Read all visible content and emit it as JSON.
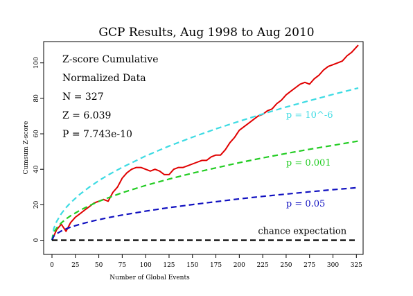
{
  "chart_data": {
    "type": "line",
    "title": "GCP Results, Aug 1998 to Aug 2010",
    "xlabel": "Number of Global Events",
    "ylabel": "Cumsum Z-score",
    "xlim": [
      0,
      327
    ],
    "ylim": [
      -8,
      112
    ],
    "x_ticks": [
      0,
      25,
      50,
      75,
      100,
      125,
      150,
      175,
      200,
      225,
      250,
      275,
      300,
      325
    ],
    "y_ticks": [
      0,
      20,
      40,
      60,
      80,
      100
    ],
    "grid": false,
    "stats": [
      "Z-score Cumulative",
      "Normalized Data",
      "N = 327",
      "Z = 6.039",
      "P = 7.743e-10"
    ],
    "series": [
      {
        "name": "",
        "color": "#e00000",
        "style": "solid",
        "x": [
          0,
          5,
          10,
          15,
          20,
          25,
          30,
          35,
          40,
          45,
          50,
          55,
          60,
          65,
          70,
          75,
          80,
          85,
          90,
          95,
          100,
          105,
          110,
          115,
          120,
          125,
          130,
          135,
          140,
          145,
          150,
          155,
          160,
          165,
          170,
          175,
          180,
          185,
          190,
          195,
          200,
          205,
          210,
          215,
          220,
          225,
          230,
          235,
          240,
          245,
          250,
          255,
          260,
          265,
          270,
          275,
          280,
          285,
          290,
          295,
          300,
          305,
          310,
          315,
          320,
          327
        ],
        "values": [
          0,
          6,
          9,
          5,
          10,
          13,
          15,
          17,
          19,
          21,
          22,
          23,
          22,
          27,
          30,
          35,
          38,
          40,
          41,
          41,
          40,
          39,
          40,
          39,
          37,
          37,
          40,
          41,
          41,
          42,
          43,
          44,
          45,
          45,
          47,
          48,
          48,
          51,
          55,
          58,
          62,
          64,
          66,
          68,
          70,
          71,
          73,
          74,
          77,
          79,
          82,
          84,
          86,
          88,
          89,
          88,
          91,
          93,
          96,
          98,
          99,
          100,
          101,
          104,
          106,
          110
        ]
      },
      {
        "name": "p = 10^-6",
        "color": "#3ddbe3",
        "style": "dashed",
        "label": "p = 10^-6",
        "label_at": [
          250,
          69
        ],
        "x": [
          0,
          2,
          5,
          10,
          15,
          20,
          30,
          40,
          50,
          60,
          75,
          100,
          125,
          150,
          175,
          200,
          225,
          250,
          275,
          300,
          327
        ],
        "values": [
          0,
          6.7,
          10.6,
          15.0,
          18.4,
          21.2,
          26.0,
          30.0,
          33.6,
          36.8,
          41.1,
          47.5,
          53.1,
          58.1,
          62.8,
          67.1,
          71.2,
          75.1,
          78.7,
          82.2,
          85.8
        ]
      },
      {
        "name": "p = 0.001",
        "color": "#22cc22",
        "style": "dashed",
        "label": "p = 0.001",
        "label_at": [
          250,
          42
        ],
        "x": [
          0,
          2,
          5,
          10,
          15,
          20,
          30,
          40,
          50,
          60,
          75,
          100,
          125,
          150,
          175,
          200,
          225,
          250,
          275,
          300,
          327
        ],
        "values": [
          0,
          4.4,
          6.9,
          9.8,
          12.0,
          13.8,
          16.9,
          19.5,
          21.9,
          23.9,
          26.8,
          30.9,
          34.5,
          37.8,
          40.8,
          43.7,
          46.4,
          48.9,
          51.3,
          53.5,
          55.9
        ]
      },
      {
        "name": "p = 0.05",
        "color": "#1010c0",
        "style": "dashed",
        "label": "p = 0.05",
        "label_at": [
          250,
          19
        ],
        "x": [
          0,
          2,
          5,
          10,
          15,
          20,
          30,
          40,
          50,
          60,
          75,
          100,
          125,
          150,
          175,
          200,
          225,
          250,
          275,
          300,
          327
        ],
        "values": [
          0,
          2.3,
          3.7,
          5.2,
          6.4,
          7.4,
          9.0,
          10.4,
          11.6,
          12.7,
          14.2,
          16.4,
          18.4,
          20.1,
          21.7,
          23.3,
          24.7,
          26.0,
          27.3,
          28.5,
          29.7
        ]
      },
      {
        "name": "chance expectation",
        "color": "#000000",
        "style": "dashed",
        "label": "chance expectation",
        "label_at": [
          220,
          3.5
        ],
        "x": [
          0,
          327
        ],
        "values": [
          0,
          0
        ]
      }
    ]
  }
}
